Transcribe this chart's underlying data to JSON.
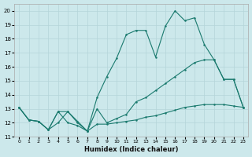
{
  "xlabel": "Humidex (Indice chaleur)",
  "bg_color": "#cce8eb",
  "grid_color": "#b5d5d9",
  "line_color": "#1a7a6e",
  "xlim": [
    -0.5,
    23.5
  ],
  "ylim": [
    11,
    20.5
  ],
  "xticks": [
    0,
    1,
    2,
    3,
    4,
    5,
    6,
    7,
    8,
    9,
    10,
    11,
    12,
    13,
    14,
    15,
    16,
    17,
    18,
    19,
    20,
    21,
    22,
    23
  ],
  "yticks": [
    11,
    12,
    13,
    14,
    15,
    16,
    17,
    18,
    19,
    20
  ],
  "line_top_x": [
    0,
    1,
    2,
    3,
    4,
    5,
    6,
    7,
    8,
    9,
    10,
    11,
    12,
    13,
    14,
    15,
    16,
    17,
    18,
    19,
    20,
    21,
    22,
    23
  ],
  "line_top_y": [
    13.1,
    12.2,
    12.1,
    11.5,
    12.8,
    12.8,
    12.1,
    11.4,
    13.8,
    15.3,
    16.6,
    18.3,
    18.6,
    18.6,
    16.7,
    18.9,
    20.0,
    19.3,
    19.5,
    17.6,
    16.5,
    15.1,
    15.1,
    13.1
  ],
  "line_mid_x": [
    0,
    1,
    2,
    3,
    4,
    5,
    6,
    7,
    8,
    9,
    10,
    11,
    12,
    13,
    14,
    15,
    16,
    17,
    18,
    19,
    20,
    21,
    22,
    23
  ],
  "line_mid_y": [
    13.1,
    12.2,
    12.1,
    11.5,
    12.8,
    12.0,
    11.8,
    11.4,
    13.0,
    12.0,
    12.3,
    12.6,
    13.5,
    13.8,
    14.3,
    14.8,
    15.3,
    15.8,
    16.3,
    16.5,
    16.5,
    15.1,
    15.1,
    13.1
  ],
  "line_bot_x": [
    0,
    1,
    2,
    3,
    4,
    5,
    6,
    7,
    8,
    9,
    10,
    11,
    12,
    13,
    14,
    15,
    16,
    17,
    18,
    19,
    20,
    21,
    22,
    23
  ],
  "line_bot_y": [
    13.1,
    12.2,
    12.1,
    11.5,
    12.0,
    12.8,
    12.0,
    11.4,
    11.9,
    11.9,
    12.0,
    12.1,
    12.2,
    12.4,
    12.5,
    12.7,
    12.9,
    13.1,
    13.2,
    13.3,
    13.3,
    13.3,
    13.2,
    13.1
  ]
}
